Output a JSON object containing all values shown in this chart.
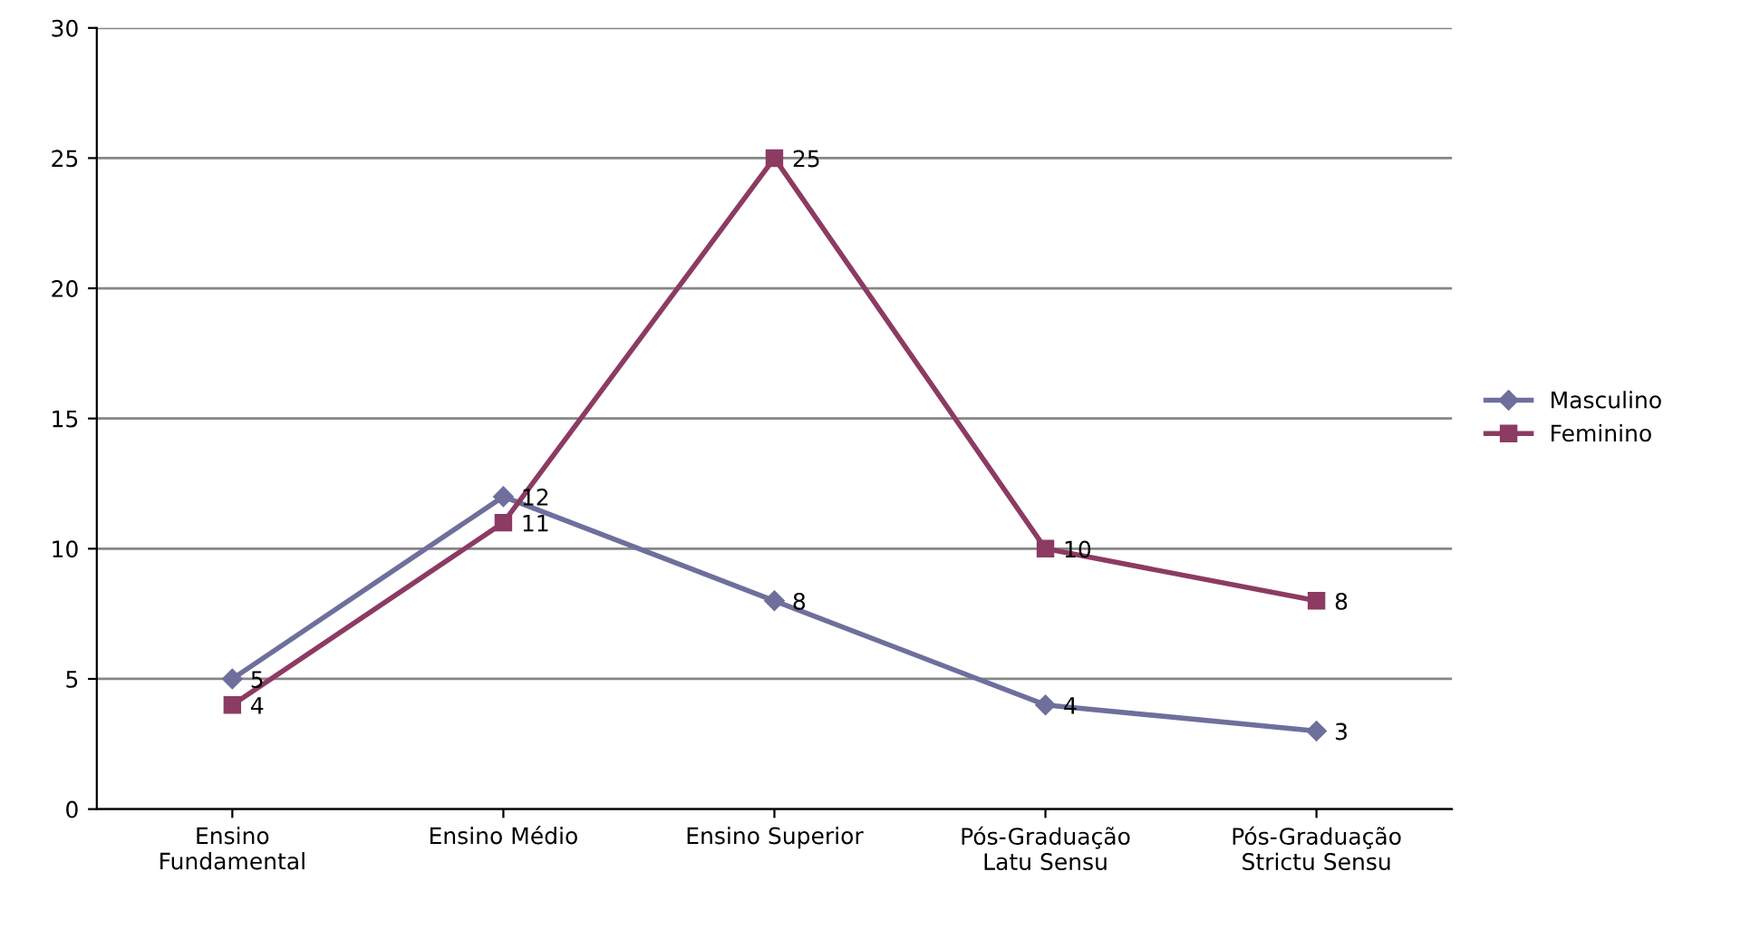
{
  "chart_data": {
    "type": "line",
    "categories": [
      "Ensino\nFundamental",
      "Ensino Médio",
      "Ensino Superior",
      "Pós-Graduação\nLatu Sensu",
      "Pós-Graduação\nStrictu Sensu"
    ],
    "series": [
      {
        "name": "Masculino",
        "color": "#6e6f9c",
        "marker": "diamond",
        "values": [
          5,
          12,
          8,
          4,
          3
        ]
      },
      {
        "name": "Feminino",
        "color": "#8c3b62",
        "marker": "square",
        "values": [
          4,
          11,
          25,
          10,
          8
        ]
      }
    ],
    "ylim": [
      0,
      30
    ],
    "yticks": [
      0,
      5,
      10,
      15,
      20,
      25,
      30
    ],
    "grid": "y",
    "legend": "right",
    "data_labels": true,
    "line_style": "solid"
  }
}
